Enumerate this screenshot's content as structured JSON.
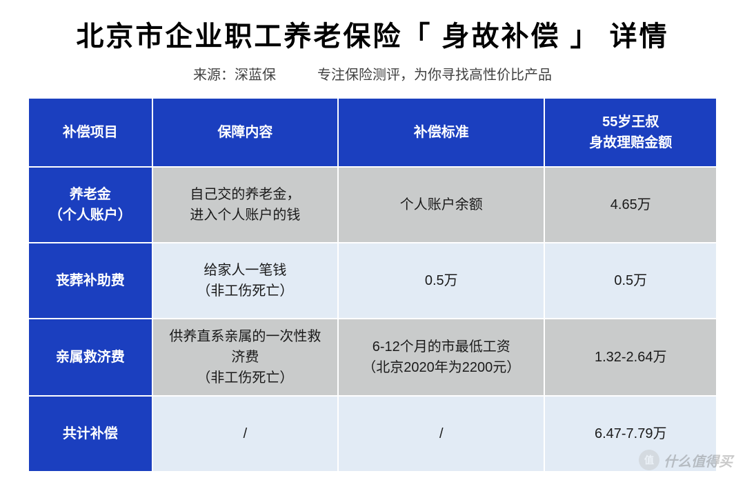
{
  "title": "北京市企业职工养老保险「 身故补偿 」 详情",
  "subtitle": {
    "source": "来源：深蓝保",
    "slogan": "专注保险测评，为你寻找高性价比产品"
  },
  "table": {
    "columns": [
      {
        "label": "补偿项目"
      },
      {
        "label": "保障内容"
      },
      {
        "label": "补偿标准"
      },
      {
        "label_line1": "55岁王叔",
        "label_line2": "身故理赔金额"
      }
    ],
    "rows": [
      {
        "name_line1": "养老金",
        "name_line2": "（个人账户）",
        "content_line1": "自己交的养老金，",
        "content_line2": "进入个人账户的钱",
        "standard": "个人账户余额",
        "amount": "4.65万",
        "shade": "a"
      },
      {
        "name": "丧葬补助费",
        "content_line1": "给家人一笔钱",
        "content_line2": "（非工伤死亡）",
        "standard": "0.5万",
        "amount": "0.5万",
        "shade": "b"
      },
      {
        "name": "亲属救济费",
        "content_line1": "供养直系亲属的一次性救",
        "content_line2": "济费",
        "content_line3": "（非工伤死亡）",
        "standard_line1": "6-12个月的市最低工资",
        "standard_line2": "（北京2020年为2200元）",
        "amount": "1.32-2.64万",
        "shade": "a"
      },
      {
        "name": "共计补偿",
        "content": "/",
        "standard": "/",
        "amount": "6.47-7.79万",
        "shade": "b"
      }
    ]
  },
  "watermark": {
    "badge": "值",
    "text": "什么值得买"
  },
  "styling": {
    "header_bg": "#1b3fbf",
    "header_text": "#ffffff",
    "row_shade_a": "#c9cbcb",
    "row_shade_b": "#e2ebf5",
    "border_color": "#ffffff",
    "title_fontsize": 40,
    "cell_fontsize": 20
  }
}
